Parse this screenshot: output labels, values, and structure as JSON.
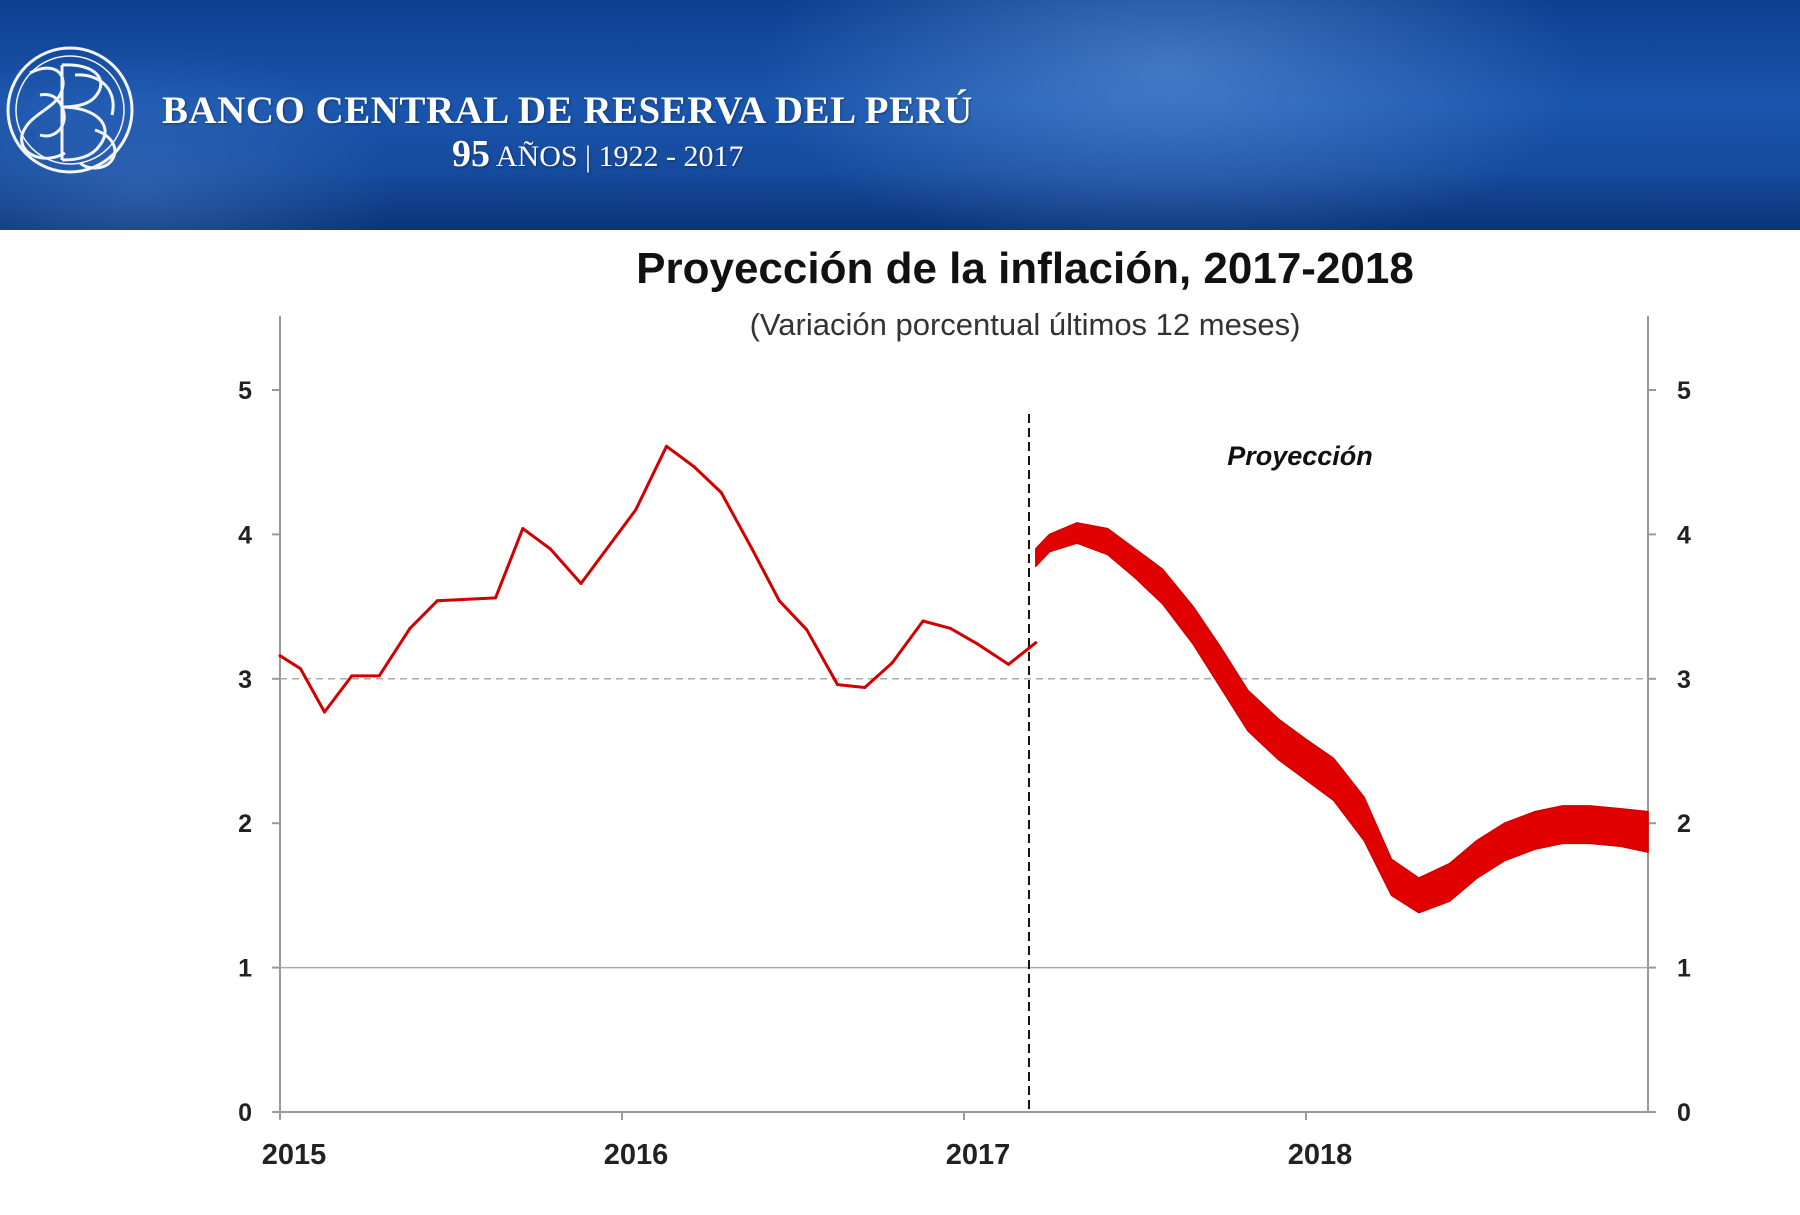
{
  "header": {
    "bank_name": "BANCO CENTRAL DE RESERVA DEL PERÚ",
    "anniversary_number": "95",
    "anniversary_text": "AÑOS | 1922 - 2017",
    "logo_icon": "bcrp-monogram-logo",
    "colors": {
      "banner": "#1a55ad",
      "text": "#ffffff"
    }
  },
  "chart_data": {
    "type": "line",
    "title": "Proyección de la inflación, 2017-2018",
    "subtitle": "(Variación porcentual últimos 12 meses)",
    "annotation": "Proyección",
    "xlabel": "",
    "ylabel": "",
    "x_range": [
      2015.0,
      2019.0
    ],
    "ylim": [
      0,
      5
    ],
    "y_ticks": [
      0,
      1,
      2,
      3,
      4,
      5
    ],
    "y_tick_labels": [
      "0",
      "1",
      "2",
      "3",
      "4",
      "5"
    ],
    "x_tick_labels": [
      {
        "label": "2015",
        "x": 2015.0
      },
      {
        "label": "2016",
        "x": 2016.0
      },
      {
        "label": "2017",
        "x": 2017.0
      },
      {
        "label": "2018",
        "x": 2018.0
      }
    ],
    "reference_lines": [
      {
        "y": 3,
        "style": "dashed"
      },
      {
        "y": 1,
        "style": "solid"
      }
    ],
    "projection_start": 2017.19,
    "grid": false,
    "legend": "none",
    "colors": {
      "series": "#d10000",
      "axes": "#999999",
      "reference": "#aaaaaa"
    },
    "series": [
      {
        "kind": "line",
        "x": [
          2015.0,
          2015.06,
          2015.13,
          2015.21,
          2015.29,
          2015.38,
          2015.46,
          2015.63,
          2015.71,
          2015.79,
          2015.88,
          2016.04,
          2016.13,
          2016.21,
          2016.29,
          2016.38,
          2016.46,
          2016.54,
          2016.63,
          2016.71,
          2016.79,
          2016.88,
          2016.96,
          2017.04,
          2017.13,
          2017.21
        ],
        "values": [
          3.16,
          3.07,
          2.77,
          3.02,
          3.02,
          3.35,
          3.54,
          3.56,
          4.04,
          3.9,
          3.66,
          4.17,
          4.61,
          4.47,
          4.29,
          3.9,
          3.54,
          3.34,
          2.96,
          2.94,
          3.11,
          3.4,
          3.35,
          3.24,
          3.1,
          3.25
        ]
      },
      {
        "kind": "band",
        "x": [
          2017.21,
          2017.25,
          2017.33,
          2017.42,
          2017.5,
          2017.58,
          2017.67,
          2017.75,
          2017.83,
          2017.92,
          2018.0,
          2018.08,
          2018.17,
          2018.25,
          2018.33,
          2018.42,
          2018.5,
          2018.58,
          2018.67,
          2018.75,
          2018.83,
          2018.92,
          2019.0
        ],
        "upper": [
          3.9,
          4.0,
          4.08,
          4.04,
          3.9,
          3.76,
          3.5,
          3.22,
          2.92,
          2.72,
          2.58,
          2.45,
          2.18,
          1.75,
          1.62,
          1.72,
          1.88,
          2.0,
          2.08,
          2.12,
          2.12,
          2.1,
          2.08
        ],
        "lower": [
          3.78,
          3.88,
          3.94,
          3.86,
          3.7,
          3.52,
          3.24,
          2.94,
          2.64,
          2.44,
          2.3,
          2.16,
          1.88,
          1.5,
          1.38,
          1.46,
          1.62,
          1.74,
          1.82,
          1.86,
          1.86,
          1.84,
          1.8
        ]
      }
    ]
  }
}
